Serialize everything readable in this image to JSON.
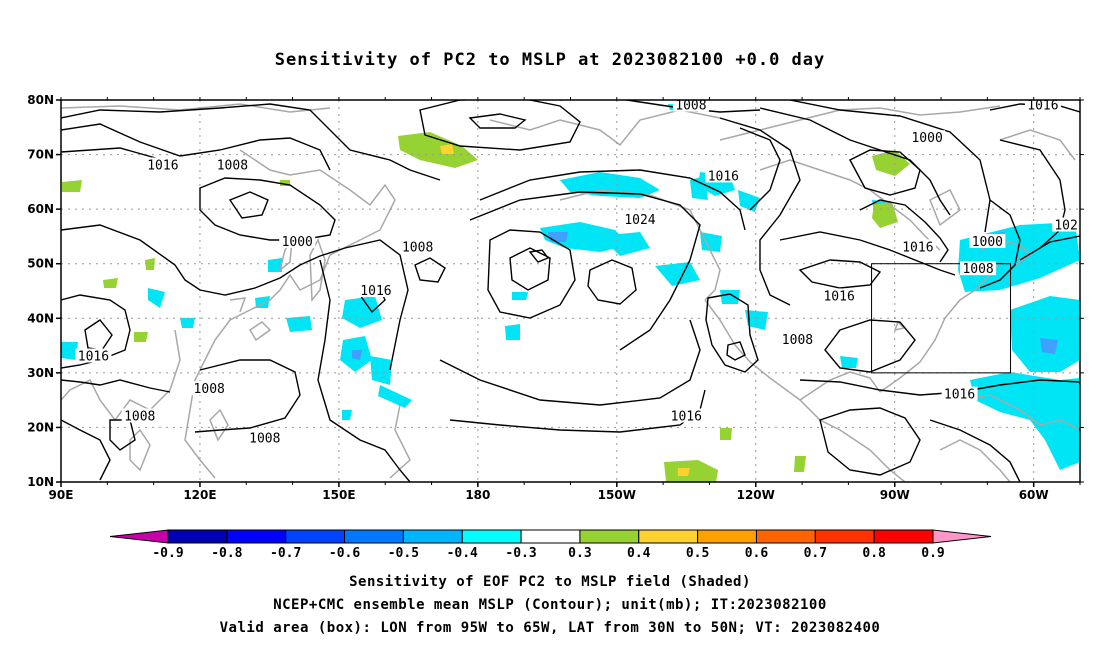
{
  "title": "Sensitivity of PC2 to MSLP at 2023082100 +0.0 day",
  "map": {
    "lon_range": [
      90,
      310
    ],
    "lat_range": [
      10,
      80
    ],
    "lon_ticks": [
      "90E",
      "120E",
      "150E",
      "180",
      "150W",
      "120W",
      "90W",
      "60W"
    ],
    "lat_ticks": [
      "80N",
      "70N",
      "60N",
      "50N",
      "40N",
      "30N",
      "20N",
      "10N"
    ],
    "valid_box": {
      "lon": [
        265,
        295
      ],
      "lat": [
        30,
        50
      ]
    },
    "contour_labels": [
      {
        "text": "1008",
        "lon": 226,
        "lat": 79
      },
      {
        "text": "1016",
        "lon": 302,
        "lat": 79
      },
      {
        "text": "1000",
        "lon": 277,
        "lat": 73
      },
      {
        "text": "1016",
        "lon": 112,
        "lat": 68
      },
      {
        "text": "1008",
        "lon": 127,
        "lat": 68
      },
      {
        "text": "1016",
        "lon": 233,
        "lat": 66
      },
      {
        "text": "1024",
        "lon": 215,
        "lat": 58
      },
      {
        "text": "1000",
        "lon": 141,
        "lat": 54
      },
      {
        "text": "1008",
        "lon": 167,
        "lat": 53
      },
      {
        "text": "1016",
        "lon": 275,
        "lat": 53
      },
      {
        "text": "1000",
        "lon": 290,
        "lat": 54
      },
      {
        "text": "102",
        "lon": 307,
        "lat": 57
      },
      {
        "text": "1008",
        "lon": 288,
        "lat": 49
      },
      {
        "text": "1016",
        "lon": 158,
        "lat": 45
      },
      {
        "text": "1016",
        "lon": 258,
        "lat": 44
      },
      {
        "text": "1008",
        "lon": 249,
        "lat": 36
      },
      {
        "text": "1016",
        "lon": 97,
        "lat": 33
      },
      {
        "text": "1008",
        "lon": 122,
        "lat": 27
      },
      {
        "text": "1008",
        "lon": 107,
        "lat": 22
      },
      {
        "text": "1016",
        "lon": 225,
        "lat": 22
      },
      {
        "text": "1016",
        "lon": 284,
        "lat": 26
      },
      {
        "text": "1008",
        "lon": 134,
        "lat": 18
      }
    ]
  },
  "colorbar": {
    "labels": [
      "-0.9",
      "-0.8",
      "-0.7",
      "-0.6",
      "-0.5",
      "-0.4",
      "-0.3",
      "0.3",
      "0.4",
      "0.5",
      "0.6",
      "0.7",
      "0.8",
      "0.9"
    ],
    "colors": [
      "#0000b4",
      "#0000ff",
      "#0044ff",
      "#0078ff",
      "#00b4ff",
      "#00ffff",
      "#ffffff",
      "#96d232",
      "#ffd232",
      "#ffa000",
      "#ff6400",
      "#ff3200",
      "#ff0000"
    ],
    "low_end_color": "#c800aa",
    "high_end_color": "#ff96c8"
  },
  "captions": {
    "line1": "Sensitivity of EOF PC2 to MSLP field (Shaded)",
    "line2": "NCEP+CMC ensemble mean MSLP (Contour); unit(mb); IT:2023082100",
    "line3": "Valid area (box): LON from 95W to 65W, LAT from 30N to 50N; VT: 2023082400"
  },
  "shading_colors": {
    "negative": "#00e5f5",
    "negative_strong": "#3fa0ff",
    "positive": "#96d232",
    "positive_strong": "#ffd232"
  }
}
